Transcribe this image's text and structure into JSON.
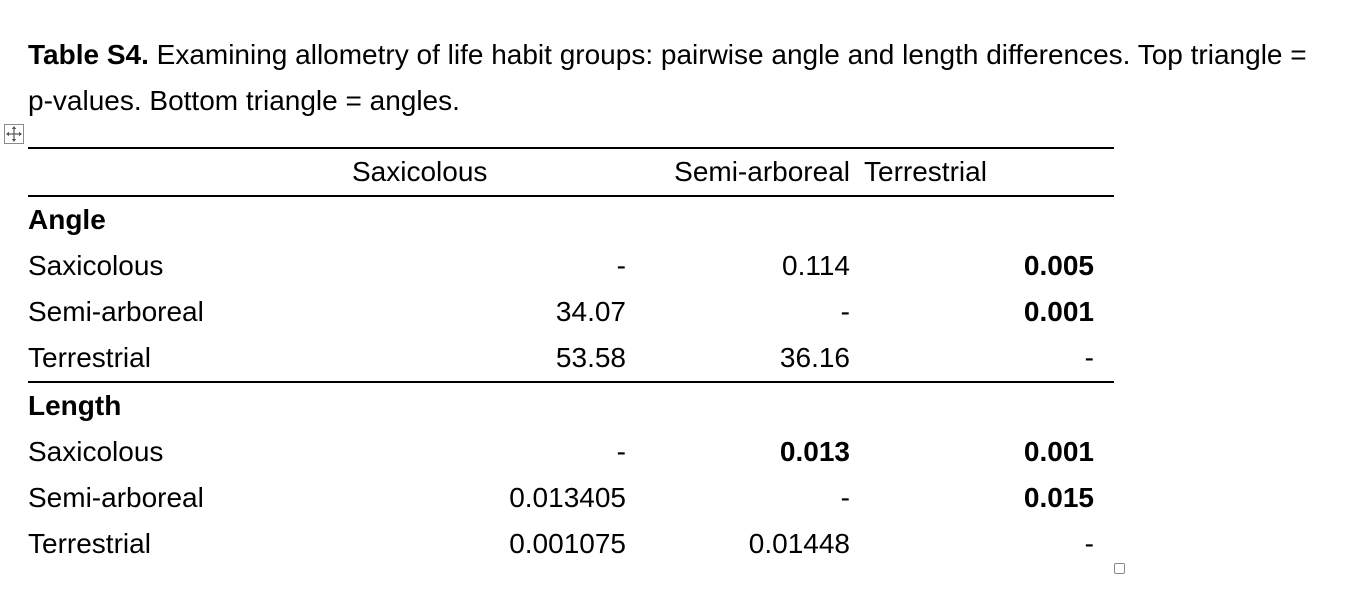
{
  "caption": {
    "lead": "Table S4.",
    "text": " Examining allometry of life habit groups: pairwise angle and length differences. Top triangle = p-values. Bottom triangle = angles."
  },
  "table": {
    "headers": [
      "",
      "Saxicolous",
      "Semi-arboreal",
      "Terrestrial"
    ],
    "sections": [
      {
        "title": "Angle",
        "rows": [
          {
            "label": "Saxicolous",
            "cells": [
              "-",
              "0.114",
              "0.005"
            ],
            "bold": [
              false,
              false,
              true
            ]
          },
          {
            "label": "Semi-arboreal",
            "cells": [
              "34.07",
              "-",
              "0.001"
            ],
            "bold": [
              false,
              false,
              true
            ]
          },
          {
            "label": "Terrestrial",
            "cells": [
              "53.58",
              "36.16",
              "-"
            ],
            "bold": [
              false,
              false,
              false
            ]
          }
        ]
      },
      {
        "title": "Length",
        "rows": [
          {
            "label": "Saxicolous",
            "cells": [
              "-",
              "0.013",
              "0.001"
            ],
            "bold": [
              false,
              true,
              true
            ]
          },
          {
            "label": "Semi-arboreal",
            "cells": [
              "0.013405",
              "-",
              "0.015"
            ],
            "bold": [
              false,
              false,
              true
            ]
          },
          {
            "label": "Terrestrial",
            "cells": [
              "0.001075",
              "0.01448",
              "-"
            ],
            "bold": [
              false,
              false,
              false
            ]
          }
        ]
      }
    ]
  },
  "icons": {
    "move_handle": "move-arrows-icon",
    "resize_handle": "resize-square-icon"
  }
}
